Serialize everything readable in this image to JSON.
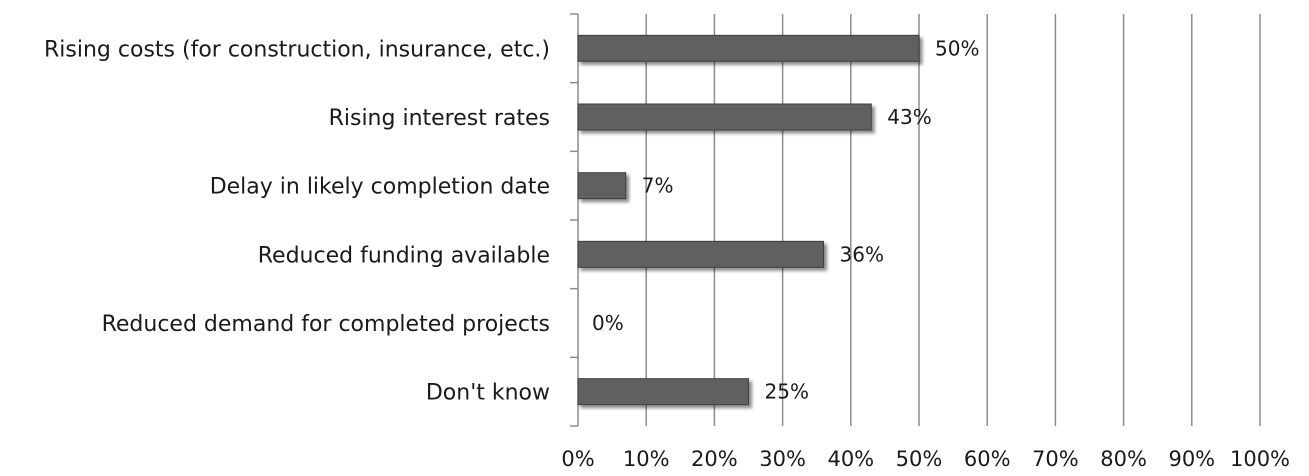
{
  "chart_data": {
    "type": "bar",
    "orientation": "horizontal",
    "categories": [
      "Rising costs (for construction, insurance, etc.)",
      "Rising interest rates",
      "Delay in likely completion date",
      "Reduced funding available",
      "Reduced demand for completed projects",
      "Don't know"
    ],
    "values": [
      50,
      43,
      7,
      36,
      0,
      25
    ],
    "value_labels": [
      "50%",
      "43%",
      "7%",
      "36%",
      "0%",
      "25%"
    ],
    "x_ticks": [
      "0%",
      "10%",
      "20%",
      "30%",
      "40%",
      "50%",
      "60%",
      "70%",
      "80%",
      "90%",
      "100%"
    ],
    "xlim": [
      0,
      100
    ],
    "xlabel": "",
    "ylabel": "",
    "title": "",
    "grid": "vertical",
    "legend": "none",
    "colors": {
      "bar": "#606060",
      "bar_edge": "#3f3f3f",
      "grid": "#8c8c8c",
      "axis": "#8c8c8c"
    }
  }
}
